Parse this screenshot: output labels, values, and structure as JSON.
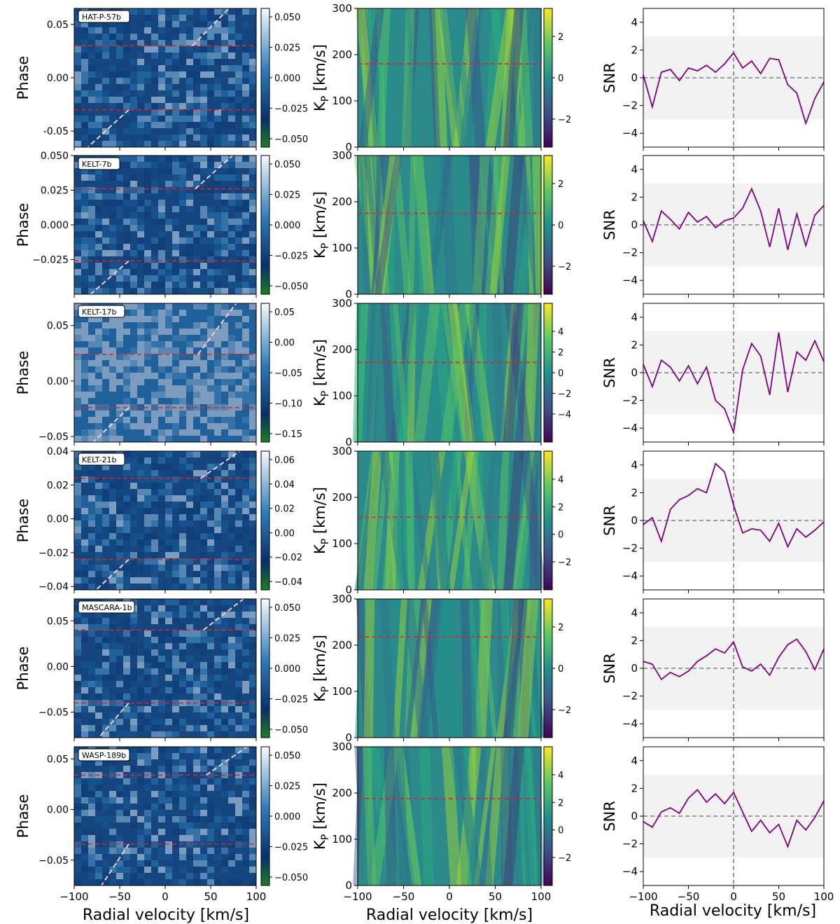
{
  "figure": {
    "col1_xlabel": "Radial velocity [km/s]",
    "col2_xlabel": "Radial velocity [km/s]",
    "col3_xlabel": "Radial velocity [km/s]",
    "col1_ylabel": "Phase",
    "col2_ylabel_main": "K",
    "col2_ylabel_sub": "P",
    "col2_ylabel_unit": " [km/s]",
    "col3_ylabel": "SNR"
  },
  "colors": {
    "planet_trail": "#f0d0e0",
    "kp_line": "#d62728",
    "snr_line": "#800080",
    "ref_line": "#808080",
    "band": "#f2f2f2"
  },
  "chart_data": [
    {
      "type": "heatmap",
      "planet": "HAT-P-57b",
      "xlim": [
        -100,
        100
      ],
      "xticks": [
        -100,
        -50,
        0,
        50,
        100
      ],
      "ylim": [
        -0.065,
        0.065
      ],
      "yticks": [
        "-0.05",
        "0.00",
        "0.05"
      ],
      "phase_limits": [
        -0.03,
        0.03
      ],
      "colorbar_ticks": [
        "0.050",
        "0.025",
        "0.000",
        "−0.025",
        "−0.050"
      ],
      "kp": {
        "ylim": [
          0,
          300
        ],
        "yticks": [
          0,
          100,
          200,
          300
        ],
        "kp_value": 180,
        "cb_ticks": [
          "2",
          "0",
          "−2"
        ]
      },
      "snr": {
        "ylim": [
          -5,
          5
        ],
        "yticks": [
          4,
          2,
          0,
          -2,
          -4
        ],
        "band": [
          -3,
          3
        ],
        "x": [
          -100,
          -90,
          -80,
          -70,
          -60,
          -50,
          -40,
          -30,
          -20,
          -10,
          0,
          10,
          20,
          30,
          40,
          50,
          60,
          70,
          80,
          90,
          100
        ],
        "y": [
          0.2,
          -2.1,
          0.4,
          0.6,
          -0.2,
          0.7,
          0.5,
          0.9,
          0.4,
          1.0,
          1.8,
          0.7,
          1.2,
          0.3,
          1.4,
          1.3,
          -0.5,
          -1.1,
          -3.3,
          -1.5,
          -0.3
        ]
      }
    },
    {
      "type": "heatmap",
      "planet": "KELT-7b",
      "xlim": [
        -100,
        100
      ],
      "xticks": [
        -100,
        -50,
        0,
        50,
        100
      ],
      "ylim": [
        -0.05,
        0.05
      ],
      "yticks": [
        "0.050",
        "0.025",
        "0.000",
        "−0.025"
      ],
      "phase_limits": [
        -0.026,
        0.026
      ],
      "colorbar_ticks": [
        "0.050",
        "0.025",
        "0.000",
        "−0.025",
        "−0.050"
      ],
      "kp": {
        "ylim": [
          0,
          300
        ],
        "yticks": [
          0,
          100,
          200,
          300
        ],
        "kp_value": 175,
        "cb_ticks": [
          "2",
          "0",
          "−2"
        ]
      },
      "snr": {
        "ylim": [
          -5,
          5
        ],
        "yticks": [
          4,
          2,
          0,
          -2,
          -4
        ],
        "band": [
          -3,
          3
        ],
        "x": [
          -100,
          -90,
          -80,
          -70,
          -60,
          -50,
          -40,
          -30,
          -20,
          -10,
          0,
          10,
          20,
          30,
          40,
          50,
          60,
          70,
          80,
          90,
          100
        ],
        "y": [
          0.3,
          -1.2,
          1.0,
          0.4,
          -0.3,
          0.9,
          0.2,
          0.6,
          -0.2,
          0.3,
          0.5,
          1.2,
          2.6,
          1.0,
          -1.6,
          1.2,
          -1.8,
          0.8,
          -1.5,
          0.7,
          1.4
        ]
      }
    },
    {
      "type": "heatmap",
      "planet": "KELT-17b",
      "xlim": [
        -100,
        100
      ],
      "xticks": [
        -100,
        -50,
        0,
        50,
        100
      ],
      "ylim": [
        -0.055,
        0.07
      ],
      "yticks": [
        "0.05",
        "0.00",
        "−0.05"
      ],
      "phase_limits": [
        -0.024,
        0.024
      ],
      "colorbar_ticks": [
        "0.05",
        "0.00",
        "−0.05",
        "−0.10",
        "−0.15"
      ],
      "kp": {
        "ylim": [
          0,
          300
        ],
        "yticks": [
          0,
          100,
          200,
          300
        ],
        "kp_value": 172,
        "cb_ticks": [
          "4",
          "2",
          "0",
          "−2",
          "−4"
        ]
      },
      "snr": {
        "ylim": [
          -5,
          5
        ],
        "yticks": [
          4,
          2,
          0,
          -2,
          -4
        ],
        "band": [
          -3,
          3
        ],
        "x": [
          -100,
          -90,
          -80,
          -70,
          -60,
          -50,
          -40,
          -30,
          -20,
          -10,
          0,
          10,
          20,
          30,
          40,
          50,
          60,
          70,
          80,
          90,
          100
        ],
        "y": [
          0.6,
          -1.0,
          0.9,
          0.4,
          -0.6,
          0.5,
          -0.8,
          0.4,
          -2.0,
          -2.6,
          -4.3,
          0.2,
          2.1,
          1.2,
          -1.6,
          2.9,
          -1.4,
          1.5,
          0.9,
          2.3,
          0.8
        ]
      }
    },
    {
      "type": "heatmap",
      "planet": "KELT-21b",
      "xlim": [
        -100,
        100
      ],
      "xticks": [
        -100,
        -50,
        0,
        50,
        100
      ],
      "ylim": [
        -0.042,
        0.04
      ],
      "yticks": [
        "0.04",
        "0.02",
        "0.00",
        "−0.02",
        "−0.04"
      ],
      "phase_limits": [
        -0.024,
        0.024
      ],
      "colorbar_ticks": [
        "0.06",
        "0.04",
        "0.02",
        "0.00",
        "−0.02",
        "−0.04"
      ],
      "kp": {
        "ylim": [
          0,
          300
        ],
        "yticks": [
          0,
          100,
          200,
          300
        ],
        "kp_value": 157,
        "cb_ticks": [
          "4",
          "2",
          "0",
          "−2"
        ]
      },
      "snr": {
        "ylim": [
          -5,
          5
        ],
        "yticks": [
          4,
          2,
          0,
          -2,
          -4
        ],
        "band": [
          -3,
          3
        ],
        "x": [
          -100,
          -90,
          -80,
          -70,
          -60,
          -50,
          -40,
          -30,
          -20,
          -10,
          0,
          10,
          20,
          30,
          40,
          50,
          60,
          70,
          80,
          90,
          100
        ],
        "y": [
          -0.3,
          0.2,
          -1.5,
          0.8,
          1.5,
          1.8,
          2.3,
          2.0,
          4.1,
          3.5,
          1.1,
          -0.9,
          -0.6,
          -0.7,
          -1.5,
          -0.2,
          -1.9,
          -0.6,
          -1.2,
          -0.7,
          -0.1
        ]
      }
    },
    {
      "type": "heatmap",
      "planet": "MASCARA-1b",
      "xlim": [
        -100,
        100
      ],
      "xticks": [
        -100,
        -50,
        0,
        50,
        100
      ],
      "ylim": [
        -0.078,
        0.074
      ],
      "yticks": [
        "0.05",
        "0.00",
        "−0.05"
      ],
      "phase_limits": [
        -0.04,
        0.04
      ],
      "colorbar_ticks": [
        "0.050",
        "0.025",
        "0.000",
        "−0.025",
        "−0.050"
      ],
      "kp": {
        "ylim": [
          0,
          300
        ],
        "yticks": [
          0,
          100,
          200,
          300
        ],
        "kp_value": 218,
        "cb_ticks": [
          "2",
          "0",
          "−2"
        ]
      },
      "snr": {
        "ylim": [
          -5,
          5
        ],
        "yticks": [
          4,
          2,
          0,
          -2,
          -4
        ],
        "band": [
          -3,
          3
        ],
        "x": [
          -100,
          -90,
          -80,
          -70,
          -60,
          -50,
          -40,
          -30,
          -20,
          -10,
          0,
          10,
          20,
          30,
          40,
          50,
          60,
          70,
          80,
          90,
          100
        ],
        "y": [
          0.5,
          0.3,
          -0.8,
          -0.3,
          -0.6,
          -0.2,
          0.5,
          0.9,
          1.4,
          1.1,
          1.9,
          0.1,
          -0.2,
          0.3,
          -0.5,
          0.8,
          1.7,
          2.1,
          1.2,
          -0.1,
          1.4
        ]
      }
    },
    {
      "type": "heatmap",
      "planet": "WASP-189b",
      "xlim": [
        -100,
        100
      ],
      "xticks": [
        -100,
        -50,
        0,
        50,
        100
      ],
      "ylim": [
        -0.075,
        0.062
      ],
      "yticks": [
        "0.05",
        "0.00",
        "−0.05"
      ],
      "phase_limits": [
        -0.034,
        0.034
      ],
      "colorbar_ticks": [
        "0.050",
        "0.025",
        "0.000",
        "−0.025",
        "−0.050"
      ],
      "kp": {
        "ylim": [
          0,
          300
        ],
        "yticks": [
          0,
          100,
          200,
          300
        ],
        "kp_value": 188,
        "cb_ticks": [
          "4",
          "2",
          "0",
          "−2"
        ]
      },
      "snr": {
        "ylim": [
          -5,
          5
        ],
        "yticks": [
          4,
          2,
          0,
          -2,
          -4
        ],
        "band": [
          -3,
          3
        ],
        "x": [
          -100,
          -90,
          -80,
          -70,
          -60,
          -50,
          -40,
          -30,
          -20,
          -10,
          0,
          10,
          20,
          30,
          40,
          50,
          60,
          70,
          80,
          90,
          100
        ],
        "y": [
          -0.4,
          -0.8,
          0.3,
          0.6,
          0.2,
          1.3,
          1.9,
          1.0,
          1.6,
          0.9,
          1.7,
          0.3,
          -1.1,
          -0.3,
          -1.2,
          -0.6,
          -2.2,
          -0.3,
          -1.0,
          -0.1,
          1.1
        ]
      }
    }
  ]
}
